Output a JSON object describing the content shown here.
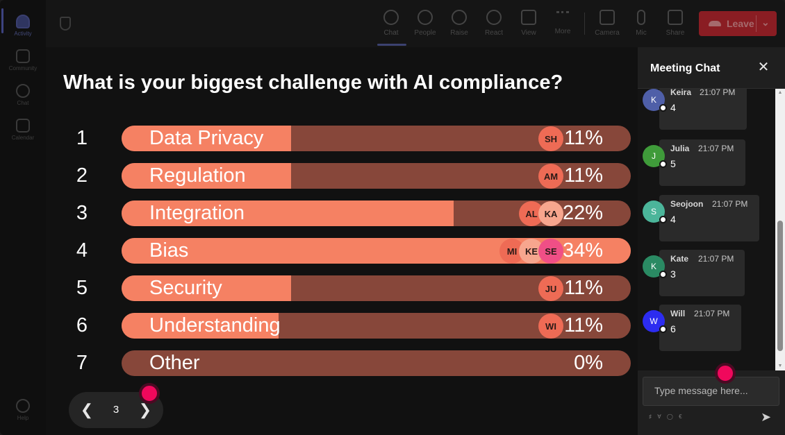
{
  "rail": {
    "items": [
      {
        "label": "Activity"
      },
      {
        "label": "Community"
      },
      {
        "label": "Chat"
      },
      {
        "label": "Calendar"
      },
      {
        "label": "Help"
      }
    ]
  },
  "toolbar": {
    "buttons": [
      {
        "label": "Chat",
        "icon": "chat-icon"
      },
      {
        "label": "People",
        "icon": "people-icon"
      },
      {
        "label": "Raise",
        "icon": "hand-icon"
      },
      {
        "label": "React",
        "icon": "smiley-icon"
      },
      {
        "label": "View",
        "icon": "grid-icon"
      },
      {
        "label": "More",
        "icon": "more-icon"
      },
      {
        "label": "Camera",
        "icon": "camera-icon"
      },
      {
        "label": "Mic",
        "icon": "mic-icon"
      },
      {
        "label": "Share",
        "icon": "share-icon"
      }
    ],
    "leave_label": "Leave"
  },
  "poll": {
    "question": "What is your biggest challenge with AI compliance?",
    "options": [
      {
        "num": "1",
        "label": "Data Privacy",
        "pct": "11%",
        "share": 0.11,
        "voters": [
          "SH"
        ]
      },
      {
        "num": "2",
        "label": "Regulation",
        "pct": "11%",
        "share": 0.11,
        "voters": [
          "AM"
        ]
      },
      {
        "num": "3",
        "label": "Integration",
        "pct": "22%",
        "share": 0.22,
        "voters": [
          "AL",
          "KA"
        ]
      },
      {
        "num": "4",
        "label": "Bias",
        "pct": "34%",
        "share": 0.34,
        "voters": [
          "MI",
          "KE",
          "SE"
        ]
      },
      {
        "num": "5",
        "label": "Security",
        "pct": "11%",
        "share": 0.11,
        "voters": [
          "JU"
        ]
      },
      {
        "num": "6",
        "label": "Understanding",
        "pct": "11%",
        "share": 0.11,
        "voters": [
          "WI"
        ]
      },
      {
        "num": "7",
        "label": "Other",
        "pct": "0%",
        "share": 0.0,
        "voters": []
      }
    ],
    "page": "3"
  },
  "chat": {
    "title": "Meeting Chat",
    "messages": [
      {
        "initial": "K",
        "name": "Keira",
        "time": "21:07 PM",
        "text": "4",
        "color": "#4f5fa8"
      },
      {
        "initial": "J",
        "name": "Julia",
        "time": "21:07 PM",
        "text": "5",
        "color": "#3f9b3a"
      },
      {
        "initial": "S",
        "name": "Seojoon",
        "time": "21:07 PM",
        "text": "4",
        "color": "#4bb59a"
      },
      {
        "initial": "K",
        "name": "Kate",
        "time": "21:07 PM",
        "text": "3",
        "color": "#2a8a63"
      },
      {
        "initial": "W",
        "name": "Will",
        "time": "21:07 PM",
        "text": "6",
        "color": "#2c2cf0"
      }
    ],
    "input_placeholder": "Type message here..."
  },
  "colors": {
    "bar_track": "#87473a",
    "bar_fill": "#f58163",
    "accent_dot": "#f0085c"
  }
}
